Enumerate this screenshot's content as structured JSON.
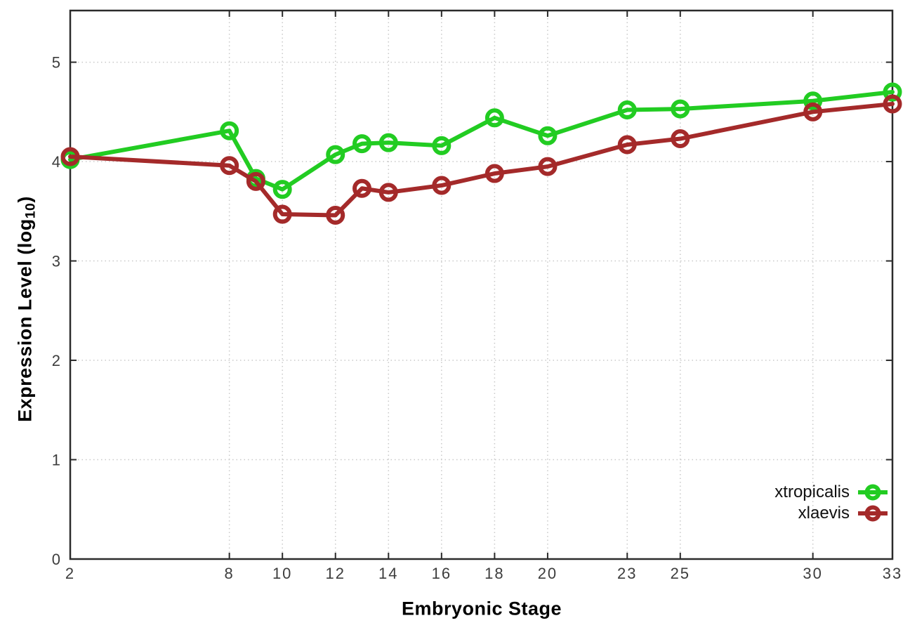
{
  "chart_data": {
    "type": "line",
    "title": "",
    "xlabel": "Embryonic Stage",
    "ylabel": "Expression Level (log10)",
    "ylabel_parts": {
      "prefix": "Expression Level (log",
      "sub": "10",
      "suffix": ")"
    },
    "x": [
      2,
      8,
      9,
      10,
      12,
      13,
      14,
      16,
      18,
      20,
      23,
      25,
      30,
      33
    ],
    "series": [
      {
        "name": "xtropicalis",
        "color": "#22cc22",
        "values": [
          4.02,
          4.31,
          3.83,
          3.72,
          4.07,
          4.18,
          4.19,
          4.16,
          4.44,
          4.26,
          4.52,
          4.53,
          4.61,
          4.7
        ]
      },
      {
        "name": "xlaevis",
        "color": "#a42a2a",
        "values": [
          4.05,
          3.96,
          3.8,
          3.47,
          3.46,
          3.73,
          3.69,
          3.76,
          3.88,
          3.95,
          4.17,
          4.23,
          4.5,
          4.58
        ]
      }
    ],
    "x_ticks": [
      2,
      8,
      10,
      12,
      14,
      16,
      18,
      20,
      23,
      25,
      30,
      33
    ],
    "y_ticks": [
      0,
      1,
      2,
      3,
      4,
      5
    ],
    "xlim": [
      2,
      33
    ],
    "ylim": [
      0,
      5.52
    ],
    "grid": true,
    "legend_position": "inside-bottom-right",
    "marker": "open-circle",
    "colors": {
      "border": "#2b2b2b",
      "gridline": "#c9c9c9",
      "tick_label": "#3d3d3d"
    }
  }
}
